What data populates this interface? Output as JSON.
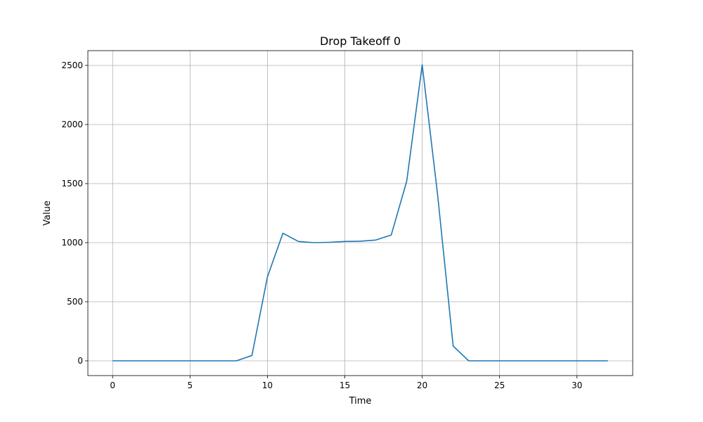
{
  "chart_data": {
    "type": "line",
    "title": "Drop Takeoff 0",
    "xlabel": "Time",
    "ylabel": "Value",
    "xlim": [
      -1.6,
      33.6
    ],
    "ylim": [
      -125,
      2625
    ],
    "xticks": [
      0,
      5,
      10,
      15,
      20,
      25,
      30
    ],
    "yticks": [
      0,
      500,
      1000,
      1500,
      2000,
      2500
    ],
    "grid": true,
    "line_color": "#1f77b4",
    "series": [
      {
        "x": [
          0,
          1,
          2,
          3,
          4,
          5,
          6,
          7,
          8,
          9,
          10,
          11,
          12,
          13,
          14,
          15,
          16,
          17,
          18,
          19,
          20,
          21,
          22,
          23,
          24,
          25,
          26,
          27,
          28,
          29,
          30,
          31,
          32
        ],
        "values": [
          0,
          0,
          0,
          0,
          0,
          0,
          0,
          0,
          0,
          45,
          710,
          1080,
          1010,
          1000,
          1003,
          1010,
          1012,
          1022,
          1065,
          1520,
          2505,
          1400,
          125,
          0,
          0,
          0,
          0,
          0,
          0,
          0,
          0,
          0,
          0
        ]
      }
    ]
  }
}
